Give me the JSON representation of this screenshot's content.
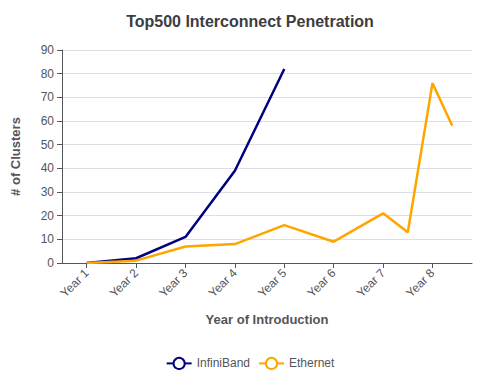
{
  "chart_data": {
    "type": "line",
    "title": "Top500 Interconnect Penetration",
    "xlabel": "Year of Introduction",
    "ylabel": "# of Clusters",
    "series": [
      {
        "name": "InfiniBand",
        "color": "#000080",
        "x": [
          1,
          2,
          3,
          4,
          5
        ],
        "values": [
          0,
          2,
          11,
          39,
          82
        ]
      },
      {
        "name": "Ethernet",
        "color": "#FFA500",
        "x": [
          1,
          2,
          3,
          4,
          5,
          6,
          7,
          7.5,
          8,
          8.4
        ],
        "values": [
          0,
          1,
          7,
          8,
          16,
          9,
          21,
          13,
          76,
          58
        ]
      }
    ],
    "xlim": [
      0.5,
      8.8
    ],
    "xticks": [
      {
        "value": 1,
        "label": "Year 1"
      },
      {
        "value": 2,
        "label": "Year 2"
      },
      {
        "value": 3,
        "label": "Year 3"
      },
      {
        "value": 4,
        "label": "Year 4"
      },
      {
        "value": 5,
        "label": "Year 5"
      },
      {
        "value": 6,
        "label": "Year 6"
      },
      {
        "value": 7,
        "label": "Year 7"
      },
      {
        "value": 8,
        "label": "Year 8"
      }
    ],
    "ylim": [
      0,
      90
    ],
    "yticks": [
      0,
      10,
      20,
      30,
      40,
      50,
      60,
      70,
      80,
      90
    ],
    "grid": "y",
    "legend": "bottom"
  }
}
